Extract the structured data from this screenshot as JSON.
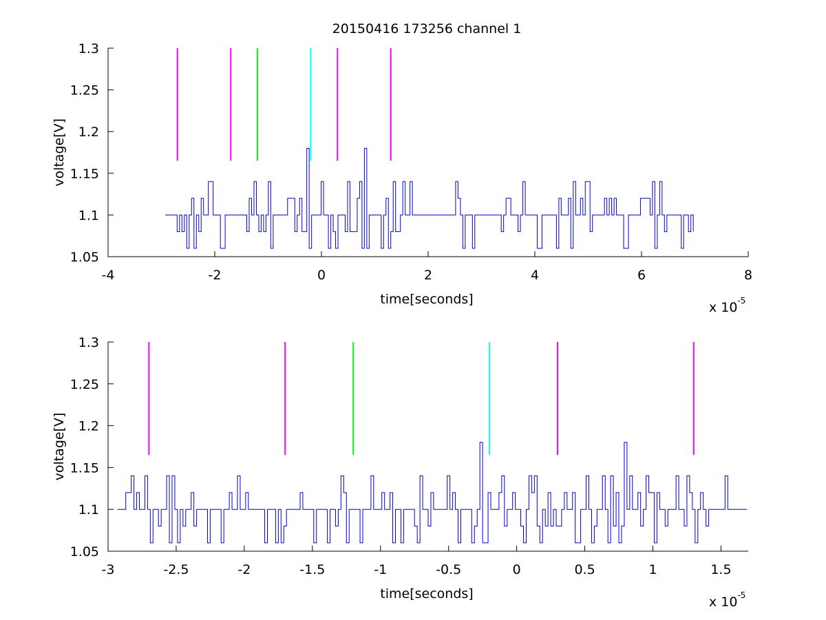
{
  "figure": {
    "title": "20150416 173256 channel 1"
  },
  "chart_data": [
    {
      "type": "line",
      "title": "20150416 173256 channel 1",
      "xlabel": "time[seconds]",
      "ylabel": "voltage[V]",
      "x_multiplier_base": "x 10",
      "x_multiplier_exp": "-5",
      "xlim": [
        -4,
        8
      ],
      "ylim": [
        1.05,
        1.3
      ],
      "xticks": [
        -4,
        -2,
        0,
        2,
        4,
        6,
        8
      ],
      "xtick_labels": [
        "-4",
        "-2",
        "0",
        "2",
        "4",
        "6",
        "8"
      ],
      "yticks": [
        1.05,
        1.1,
        1.15,
        1.2,
        1.25,
        1.3
      ],
      "ytick_labels": [
        "1.05",
        "1.1",
        "1.15",
        "1.2",
        "1.25",
        "1.3"
      ],
      "grid": false,
      "signal": {
        "color": "#0000cc",
        "x_range": [
          -2.93,
          7.0
        ],
        "levels": [
          1.06,
          1.08,
          1.1,
          1.12,
          1.14
        ],
        "spikes": [
          {
            "x": -0.26,
            "y": 1.18
          },
          {
            "x": 0.8,
            "y": 1.18
          }
        ],
        "flat_segments": [
          [
            1.68,
            2.42
          ]
        ]
      },
      "markers": [
        {
          "x": -2.7,
          "y_from": 1.165,
          "y_to": 1.3,
          "color": "#ff00ff"
        },
        {
          "x": -1.7,
          "y_from": 1.165,
          "y_to": 1.3,
          "color": "#ff00ff"
        },
        {
          "x": -1.2,
          "y_from": 1.165,
          "y_to": 1.3,
          "color": "#00ff00"
        },
        {
          "x": -0.2,
          "y_from": 1.165,
          "y_to": 1.3,
          "color": "#00ffff"
        },
        {
          "x": 0.3,
          "y_from": 1.165,
          "y_to": 1.3,
          "color": "#ff00ff"
        },
        {
          "x": 1.3,
          "y_from": 1.165,
          "y_to": 1.3,
          "color": "#ff00ff"
        }
      ]
    },
    {
      "type": "line",
      "title": "",
      "xlabel": "time[seconds]",
      "ylabel": "voltage[V]",
      "x_multiplier_base": "x 10",
      "x_multiplier_exp": "-5",
      "xlim": [
        -3.0,
        1.7
      ],
      "ylim": [
        1.05,
        1.3
      ],
      "xticks": [
        -3,
        -2.5,
        -2,
        -1.5,
        -1,
        -0.5,
        0,
        0.5,
        1,
        1.5
      ],
      "xtick_labels": [
        "-3",
        "-2.5",
        "-2",
        "-1.5",
        "-1",
        "-0.5",
        "0",
        "0.5",
        "1",
        "1.5"
      ],
      "yticks": [
        1.05,
        1.1,
        1.15,
        1.2,
        1.25,
        1.3
      ],
      "ytick_labels": [
        "1.05",
        "1.1",
        "1.15",
        "1.2",
        "1.25",
        "1.3"
      ],
      "grid": false,
      "signal": {
        "color": "#0000cc",
        "x_range": [
          -2.93,
          1.7
        ],
        "levels": [
          1.06,
          1.08,
          1.1,
          1.12,
          1.14
        ],
        "spikes": [
          {
            "x": -0.27,
            "y": 1.18
          },
          {
            "x": 0.8,
            "y": 1.18
          }
        ],
        "flat_segments": [
          [
            1.6,
            1.7
          ]
        ]
      },
      "markers": [
        {
          "x": -2.7,
          "y_from": 1.165,
          "y_to": 1.3,
          "color": "#ff00ff"
        },
        {
          "x": -1.7,
          "y_from": 1.165,
          "y_to": 1.3,
          "color": "#ff00ff"
        },
        {
          "x": -1.2,
          "y_from": 1.165,
          "y_to": 1.3,
          "color": "#00ff00"
        },
        {
          "x": -0.2,
          "y_from": 1.165,
          "y_to": 1.3,
          "color": "#00ffff"
        },
        {
          "x": 0.3,
          "y_from": 1.165,
          "y_to": 1.3,
          "color": "#ff00ff"
        },
        {
          "x": 1.3,
          "y_from": 1.165,
          "y_to": 1.3,
          "color": "#ff00ff"
        }
      ]
    }
  ]
}
